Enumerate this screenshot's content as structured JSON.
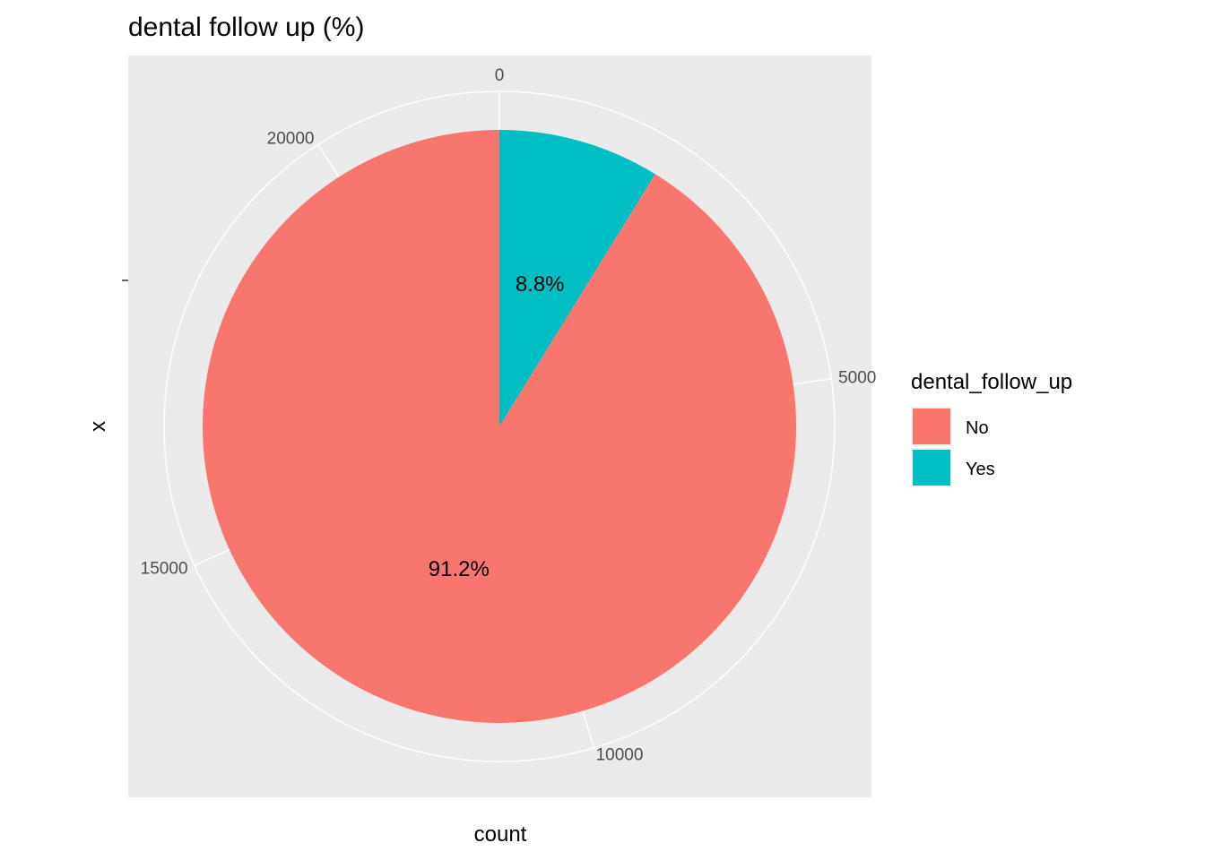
{
  "chart_data": {
    "type": "pie",
    "title": "dental follow up (%)",
    "xlabel": "count",
    "ylabel": "x",
    "radial_ticks": [
      0,
      5000,
      10000,
      15000,
      20000
    ],
    "radial_tick_labels": [
      "0",
      "5000",
      "10000",
      "15000",
      "20000"
    ],
    "total": 22000,
    "slices": [
      {
        "label": "No",
        "percent": 91.2,
        "percent_label": "91.2%",
        "color": "#F8766D"
      },
      {
        "label": "Yes",
        "percent": 8.8,
        "percent_label": "8.8%",
        "color": "#00BFC4"
      }
    ],
    "legend": {
      "title": "dental_follow_up",
      "position": "right",
      "items": [
        {
          "label": "No",
          "color": "#F8766D"
        },
        {
          "label": "Yes",
          "color": "#00BFC4"
        }
      ]
    },
    "panel_background": "#EBEBEB",
    "grid_color": "#FFFFFF",
    "grid": true
  }
}
